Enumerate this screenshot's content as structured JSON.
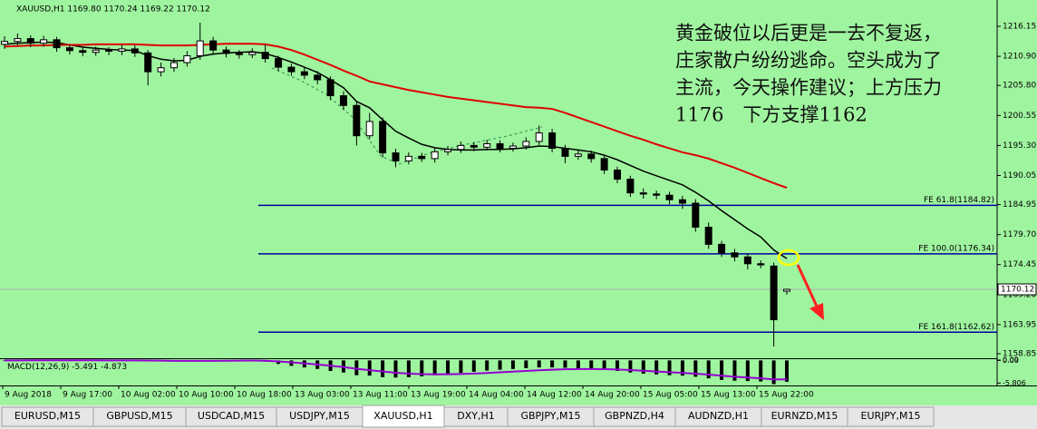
{
  "chart_data": {
    "type": "candlestick",
    "title": "XAUUSD,H1  1169.80 1170.24 1169.22 1170.12",
    "ylim": [
      1158.06,
      1217.9
    ],
    "yticks": [
      1216.15,
      {
        "value": 1210.9,
        "label": "1210.90"
      },
      {
        "value": 1205.8,
        "label": "1205.80"
      },
      1200.55,
      {
        "value": 1195.3,
        "label": "1195.30"
      },
      1190.05,
      1184.95,
      {
        "value": 1179.7,
        "label": "1179.70"
      },
      1174.45,
      {
        "value": 1169.2,
        "label": "1169.20"
      },
      1163.95,
      1158.85
    ],
    "x_labels": [
      "9 Aug 2018",
      "9 Aug 17:00",
      "10 Aug 02:00",
      "10 Aug 10:00",
      "10 Aug 18:00",
      "13 Aug 03:00",
      "13 Aug 11:00",
      "13 Aug 19:00",
      "14 Aug 04:00",
      "14 Aug 12:00",
      "14 Aug 20:00",
      "15 Aug 05:00",
      "15 Aug 13:00",
      "15 Aug 22:00"
    ],
    "bull_color": "#ffffff",
    "bear_color": "#000000",
    "open": [
      1213.0,
      1213.5,
      1214.0,
      1213.2,
      1213.8,
      1212.4,
      1211.9,
      1211.6,
      1212.0,
      1211.8,
      1212.2,
      1211.5,
      1208.2,
      1208.9,
      1209.8,
      1211.0,
      1213.6,
      1212.0,
      1211.4,
      1211.2,
      1211.6,
      1210.5,
      1209.0,
      1208.2,
      1207.6,
      1206.8,
      1204.0,
      1202.3,
      1197.0,
      1199.5,
      1194.0,
      1192.6,
      1193.4,
      1193.0,
      1194.2,
      1194.6,
      1195.3,
      1195.0,
      1195.6,
      1194.8,
      1195.2,
      1196.0,
      1197.5,
      1194.8,
      1193.4,
      1193.8,
      1193.0,
      1191.0,
      1189.4,
      1187.0,
      1186.8,
      1186.6,
      1185.8,
      1185.2,
      1181.0,
      1178.0,
      1176.5,
      1175.8,
      1174.6,
      1174.2,
      1169.8
    ],
    "high": [
      1214.4,
      1214.9,
      1214.6,
      1214.5,
      1214.3,
      1213.0,
      1212.5,
      1212.6,
      1212.5,
      1212.9,
      1212.8,
      1212.0,
      1209.8,
      1210.6,
      1211.8,
      1216.8,
      1214.3,
      1212.6,
      1212.0,
      1212.3,
      1213.0,
      1211.0,
      1209.6,
      1208.9,
      1208.3,
      1207.4,
      1204.8,
      1203.0,
      1201.0,
      1200.2,
      1194.7,
      1194.1,
      1194.0,
      1194.9,
      1195.2,
      1196.0,
      1195.9,
      1196.3,
      1196.2,
      1195.8,
      1196.7,
      1198.8,
      1198.2,
      1195.4,
      1194.5,
      1194.4,
      1193.6,
      1191.6,
      1190.0,
      1187.8,
      1187.4,
      1187.2,
      1186.5,
      1185.9,
      1181.8,
      1178.6,
      1177.2,
      1176.4,
      1175.2,
      1174.8,
      1170.24
    ],
    "low": [
      1212.2,
      1212.8,
      1212.5,
      1212.6,
      1211.7,
      1211.2,
      1210.9,
      1211.0,
      1211.1,
      1211.1,
      1210.8,
      1205.8,
      1207.4,
      1208.2,
      1209.1,
      1210.3,
      1211.2,
      1210.7,
      1210.5,
      1210.6,
      1209.8,
      1208.3,
      1207.5,
      1206.9,
      1206.0,
      1203.2,
      1201.5,
      1195.3,
      1196.4,
      1193.2,
      1191.5,
      1192.0,
      1192.4,
      1192.3,
      1193.6,
      1194.0,
      1194.3,
      1194.4,
      1194.1,
      1194.2,
      1194.6,
      1195.4,
      1194.1,
      1192.2,
      1192.8,
      1192.3,
      1190.3,
      1188.7,
      1186.3,
      1186.0,
      1185.9,
      1185.0,
      1184.2,
      1180.2,
      1177.2,
      1175.8,
      1175.0,
      1173.6,
      1173.8,
      1160.1,
      1169.22
    ],
    "close": [
      1213.5,
      1214.0,
      1213.2,
      1213.8,
      1212.4,
      1211.9,
      1211.6,
      1212.0,
      1211.8,
      1212.2,
      1211.5,
      1208.2,
      1208.9,
      1209.8,
      1211.0,
      1213.6,
      1212.0,
      1211.4,
      1211.2,
      1211.6,
      1210.5,
      1209.0,
      1208.2,
      1207.6,
      1206.8,
      1204.0,
      1202.3,
      1197.0,
      1199.5,
      1194.0,
      1192.6,
      1193.4,
      1193.0,
      1194.2,
      1194.6,
      1195.3,
      1195.0,
      1195.6,
      1194.8,
      1195.2,
      1196.0,
      1197.5,
      1194.8,
      1193.4,
      1193.8,
      1193.0,
      1191.0,
      1189.4,
      1187.0,
      1186.8,
      1186.6,
      1185.8,
      1185.2,
      1181.0,
      1178.0,
      1176.5,
      1175.8,
      1174.6,
      1174.4,
      1164.8,
      1170.12
    ],
    "moving_averages": [
      {
        "color": "#000000",
        "values": [
          1213.0,
          1213.2,
          1213.3,
          1213.4,
          1213.3,
          1212.9,
          1212.5,
          1212.3,
          1212.1,
          1212.0,
          1211.9,
          1211.0,
          1210.4,
          1210.1,
          1210.2,
          1210.9,
          1211.3,
          1211.5,
          1211.6,
          1211.7,
          1211.4,
          1210.7,
          1209.9,
          1209.0,
          1208.1,
          1206.8,
          1205.4,
          1203.0,
          1201.9,
          1199.8,
          1197.8,
          1196.6,
          1195.5,
          1194.9,
          1194.6,
          1194.5,
          1194.5,
          1194.6,
          1194.6,
          1194.7,
          1194.9,
          1195.2,
          1195.1,
          1194.8,
          1194.5,
          1194.2,
          1193.6,
          1192.8,
          1191.8,
          1190.8,
          1190.0,
          1189.2,
          1188.4,
          1187.1,
          1185.6,
          1183.9,
          1182.3,
          1180.7,
          1179.3,
          1177.0,
          1175.5
        ]
      },
      {
        "color": "#e00000",
        "values": [
          1212.6,
          1212.7,
          1212.8,
          1212.8,
          1212.9,
          1212.9,
          1212.9,
          1213.0,
          1213.0,
          1213.0,
          1213.0,
          1212.9,
          1212.8,
          1212.8,
          1212.8,
          1212.9,
          1213.0,
          1213.1,
          1213.1,
          1213.1,
          1213.0,
          1212.6,
          1212.0,
          1211.2,
          1210.3,
          1209.4,
          1208.4,
          1207.5,
          1206.5,
          1206.0,
          1205.5,
          1205.0,
          1204.6,
          1204.2,
          1203.8,
          1203.5,
          1203.2,
          1202.9,
          1202.6,
          1202.3,
          1202.0,
          1201.9,
          1201.7,
          1201.0,
          1200.2,
          1199.4,
          1198.6,
          1197.8,
          1197.0,
          1196.3,
          1195.5,
          1194.8,
          1194.1,
          1193.6,
          1193.0,
          1192.2,
          1191.4,
          1190.5,
          1189.6,
          1188.7,
          1187.9
        ]
      }
    ],
    "levels": [
      {
        "label": "FE 61.8(1184.82)",
        "value": 1184.82,
        "color": "#0000a0"
      },
      {
        "label": "FE 100.0(1176.34)",
        "value": 1176.34,
        "color": "#0000a0"
      },
      {
        "label": "FE 161.8(1162.62)",
        "value": 1162.62,
        "color": "#0000a0"
      }
    ],
    "annotation": [
      "黄金破位以后更是一去不复返，",
      "庄家散户纷纷逃命。空头成为了",
      "主流，今天操作建议；上方压力",
      "1176　下方支撑1162"
    ],
    "macd": {
      "title": "MACD(12,26,9)",
      "ylim": [
        -6.2,
        0.09
      ],
      "yticks": [
        0.09,
        {
          "value": 0,
          "label": "0.00"
        },
        -5.806
      ],
      "hist_color": "#000000",
      "signal_color": "#9400d3",
      "histogram": [
        0.05,
        0.06,
        0.05,
        0.04,
        0.03,
        0.02,
        0.01,
        0.0,
        -0.02,
        -0.03,
        -0.05,
        -0.1,
        -0.2,
        -0.25,
        -0.2,
        -0.1,
        0.0,
        0.02,
        0.03,
        0.03,
        -0.3,
        -0.9,
        -1.4,
        -1.8,
        -2.2,
        -2.7,
        -3.1,
        -3.8,
        -3.9,
        -4.3,
        -4.4,
        -4.3,
        -4.1,
        -3.8,
        -3.5,
        -3.2,
        -2.9,
        -2.6,
        -2.4,
        -2.2,
        -2.0,
        -1.8,
        -1.8,
        -1.9,
        -2.0,
        -2.1,
        -2.4,
        -2.7,
        -3.1,
        -3.4,
        -3.6,
        -3.8,
        -3.9,
        -4.2,
        -4.6,
        -5.0,
        -5.2,
        -5.3,
        -5.4,
        -6.1,
        -5.491
      ],
      "signal": [
        0.0,
        0.01,
        0.02,
        0.03,
        0.03,
        0.03,
        0.03,
        0.02,
        0.01,
        0.0,
        -0.01,
        -0.03,
        -0.07,
        -0.1,
        -0.12,
        -0.12,
        -0.1,
        -0.08,
        -0.06,
        -0.04,
        -0.09,
        -0.25,
        -0.48,
        -0.75,
        -1.04,
        -1.37,
        -1.72,
        -2.14,
        -2.49,
        -2.85,
        -3.16,
        -3.39,
        -3.53,
        -3.58,
        -3.56,
        -3.49,
        -3.37,
        -3.22,
        -3.06,
        -2.89,
        -2.71,
        -2.53,
        -2.38,
        -2.28,
        -2.22,
        -2.2,
        -2.24,
        -2.33,
        -2.48,
        -2.66,
        -2.85,
        -3.04,
        -3.21,
        -3.41,
        -3.65,
        -3.92,
        -4.18,
        -4.4,
        -4.6,
        -4.9,
        -4.873
      ]
    }
  },
  "tabs": {
    "items": [
      "EURUSD,M15",
      "GBPUSD,M15",
      "USDCAD,M15",
      "USDJPY,M15",
      "XAUUSD,H1",
      "DXY,H1",
      "GBPJPY,M15",
      "GBPNZD,H4",
      "AUDNZD,H1",
      "EURNZD,M15",
      "EURJPY,M15"
    ],
    "active": 4
  }
}
